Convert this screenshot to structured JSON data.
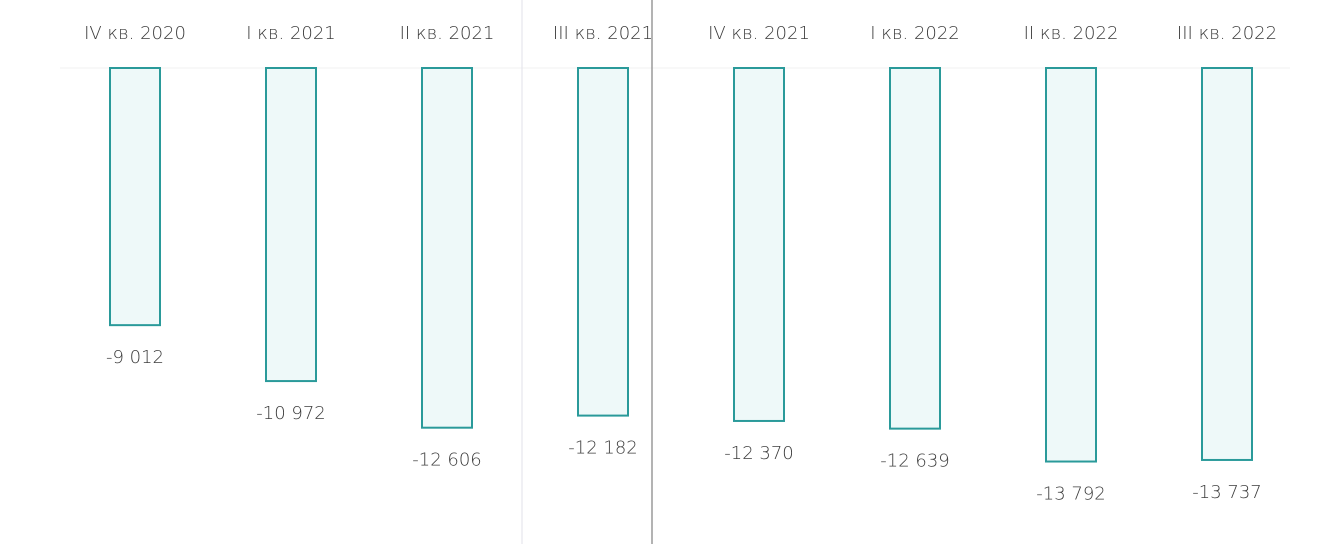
{
  "chart_data": {
    "type": "bar",
    "categories": [
      "IV кв. 2020",
      "I кв. 2021",
      "II кв. 2021",
      "III кв. 2021",
      "IV кв. 2021",
      "I кв. 2022",
      "II кв. 2022",
      "III кв. 2022"
    ],
    "values": [
      -9012,
      -10972,
      -12606,
      -12182,
      -12370,
      -12639,
      -13792,
      -13737
    ],
    "value_labels": [
      "-9 012",
      "-10 972",
      "-12 606",
      "-12 182",
      "-12 370",
      "-12 639",
      "-13 792",
      "-13 737"
    ],
    "color": "#eef9f9",
    "edge_color": "#2a9a9a",
    "ylim": [
      -15000,
      0
    ]
  }
}
